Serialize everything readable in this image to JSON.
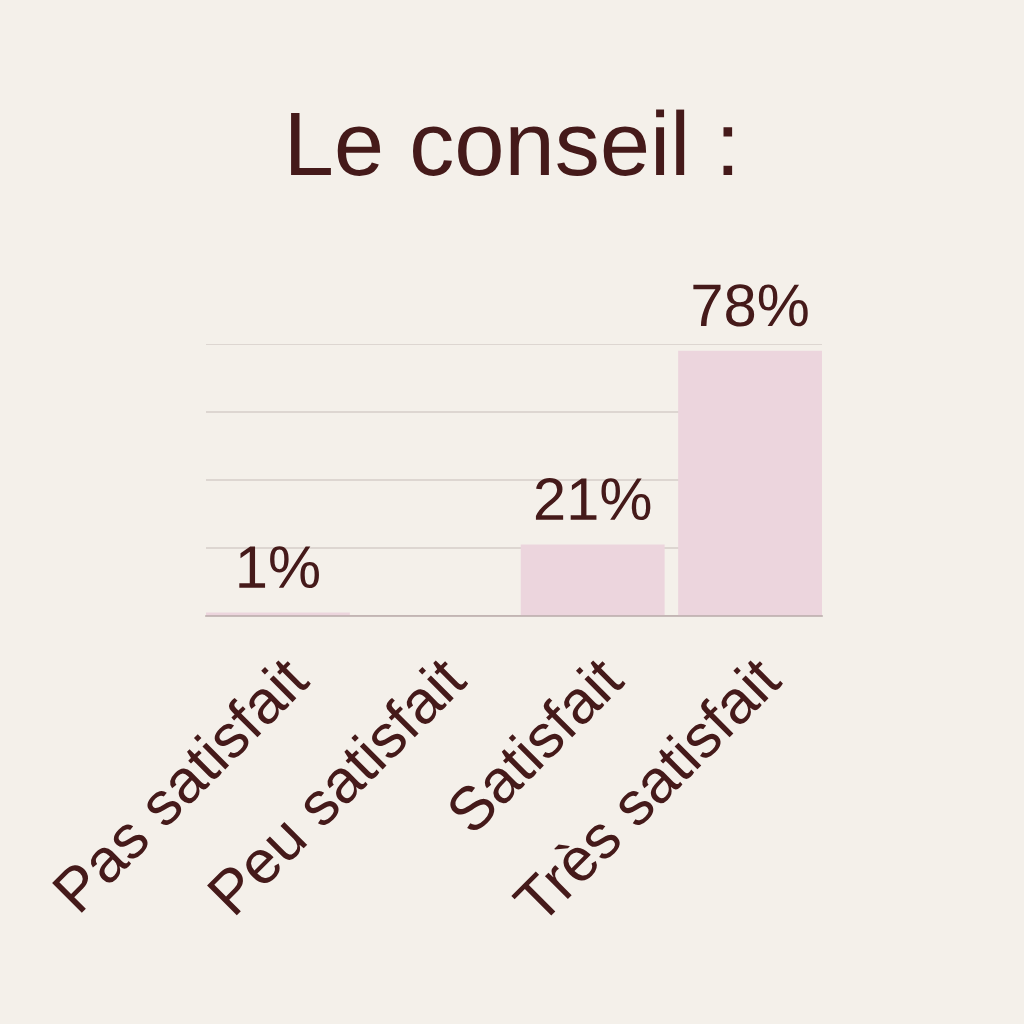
{
  "chart_data": {
    "type": "bar",
    "title": "Le conseil :",
    "categories": [
      "Pas satisfait",
      "Peu satisfait",
      "Satisfait",
      "Très satisfait"
    ],
    "values": [
      1,
      null,
      21,
      78
    ],
    "value_labels": [
      "1%",
      null,
      "21%",
      "78%"
    ],
    "color": "#ecd5dd",
    "ylim": [
      0,
      80
    ],
    "yticks": [
      {
        "value": 0,
        "label": null
      },
      {
        "value": 20,
        "label": null
      },
      {
        "value": 40,
        "label": null
      },
      {
        "value": 60,
        "label": null
      },
      {
        "value": 80,
        "label": null
      }
    ],
    "tick_labels": "x",
    "grid": "y"
  }
}
